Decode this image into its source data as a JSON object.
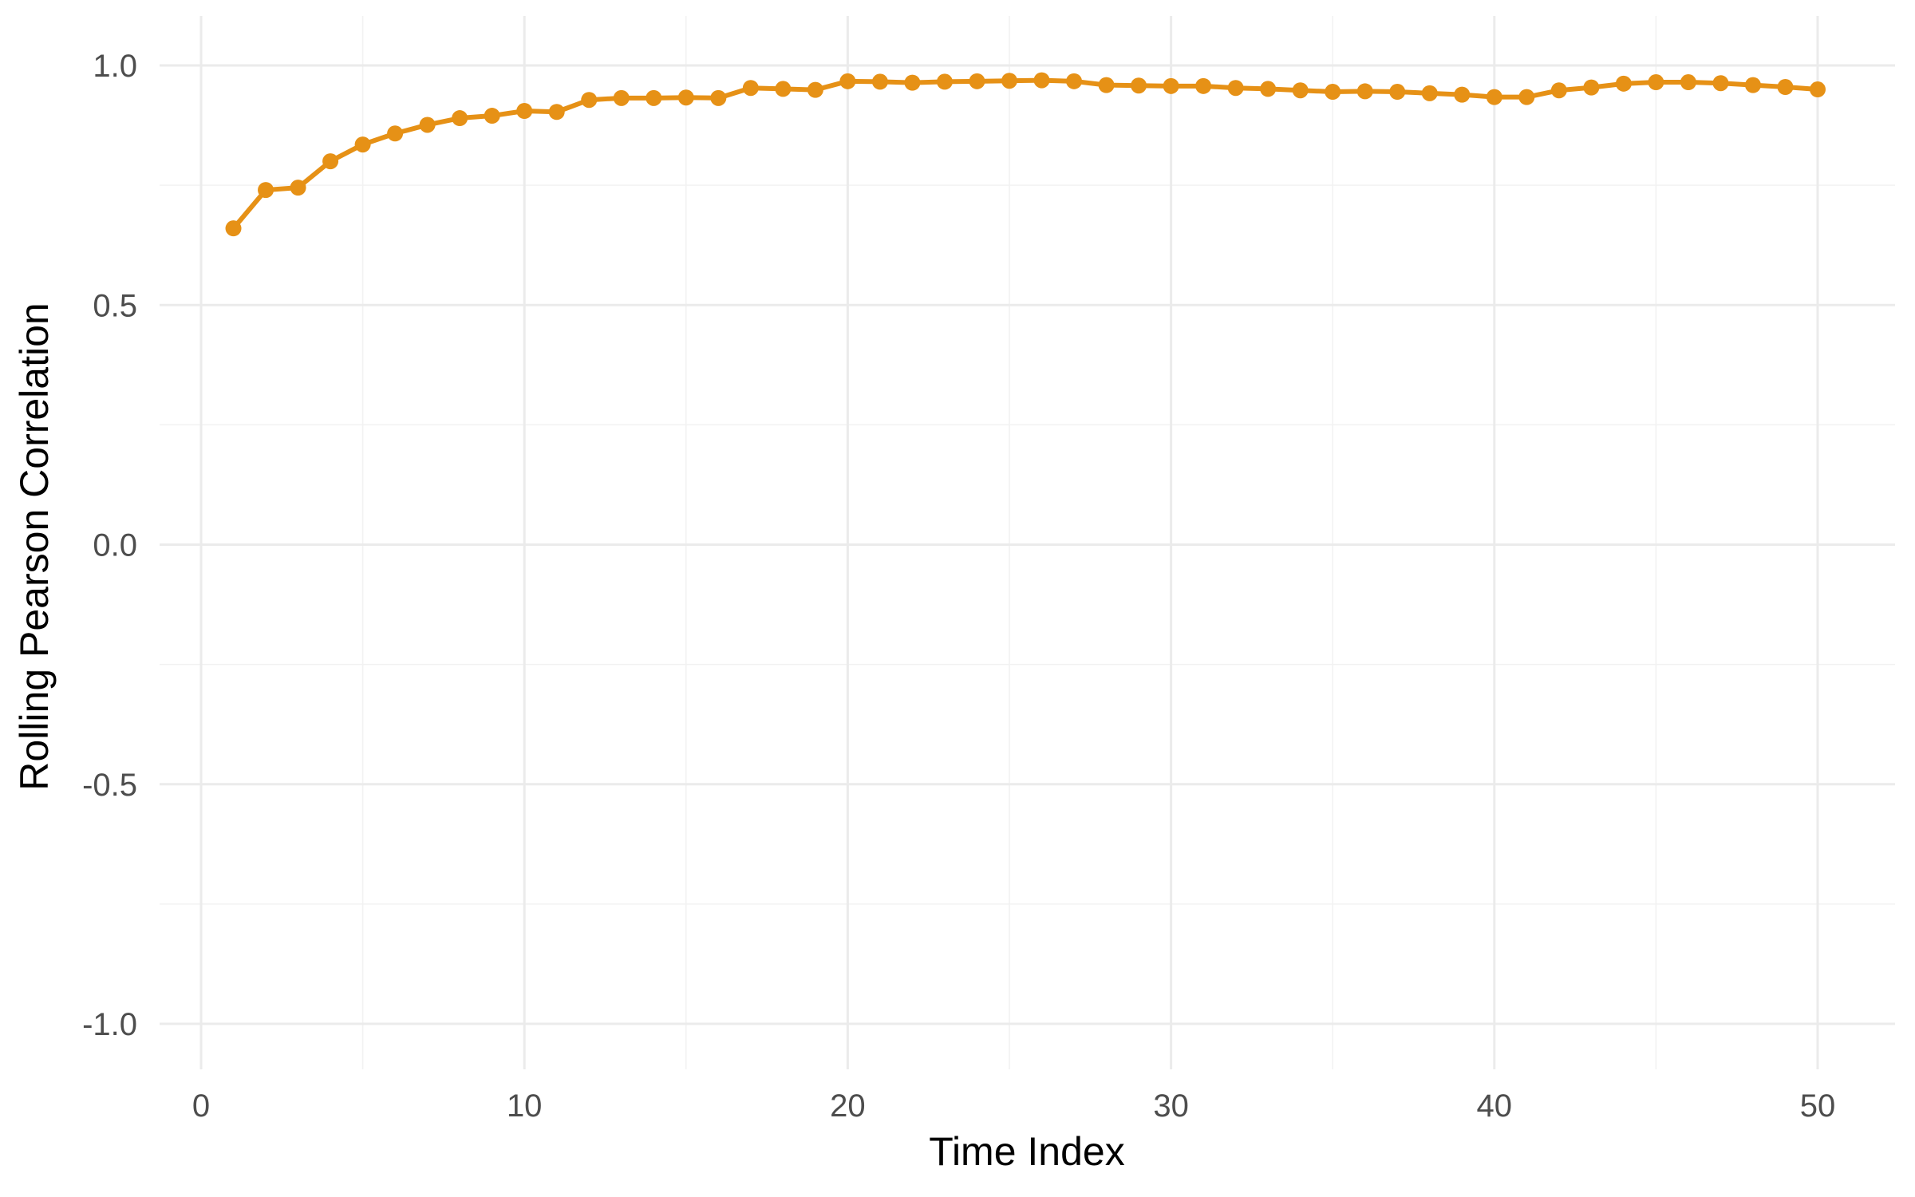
{
  "chart_data": {
    "type": "line",
    "title": "",
    "xlabel": "Time Index",
    "ylabel": "Rolling Pearson Correlation",
    "xlim": [
      0,
      50
    ],
    "ylim": [
      -1.0,
      1.0
    ],
    "x_ticks": [
      0,
      10,
      20,
      30,
      40,
      50
    ],
    "x_tick_labels": [
      "0",
      "10",
      "20",
      "30",
      "40",
      "50"
    ],
    "y_ticks": [
      -1.0,
      -0.5,
      0.0,
      0.5,
      1.0
    ],
    "y_tick_labels": [
      "-1.0",
      "-0.5",
      "0.0",
      "0.5",
      "1.0"
    ],
    "grid": true,
    "legend": "none",
    "series": [
      {
        "color": "#E69116",
        "x": [
          1,
          2,
          3,
          4,
          5,
          6,
          7,
          8,
          9,
          10,
          11,
          12,
          13,
          14,
          15,
          16,
          17,
          18,
          19,
          20,
          21,
          22,
          23,
          24,
          25,
          26,
          27,
          28,
          29,
          30,
          31,
          32,
          33,
          34,
          35,
          36,
          37,
          38,
          39,
          40,
          41,
          42,
          43,
          44,
          45,
          46,
          47,
          48,
          49,
          50
        ],
        "values": [
          0.66,
          0.74,
          0.745,
          0.8,
          0.835,
          0.858,
          0.876,
          0.89,
          0.895,
          0.905,
          0.903,
          0.928,
          0.932,
          0.932,
          0.933,
          0.932,
          0.953,
          0.951,
          0.949,
          0.967,
          0.966,
          0.964,
          0.966,
          0.967,
          0.968,
          0.969,
          0.967,
          0.959,
          0.958,
          0.957,
          0.957,
          0.953,
          0.951,
          0.948,
          0.945,
          0.946,
          0.945,
          0.942,
          0.939,
          0.934,
          0.934,
          0.948,
          0.954,
          0.962,
          0.965,
          0.965,
          0.963,
          0.959,
          0.955,
          0.95
        ]
      }
    ]
  }
}
